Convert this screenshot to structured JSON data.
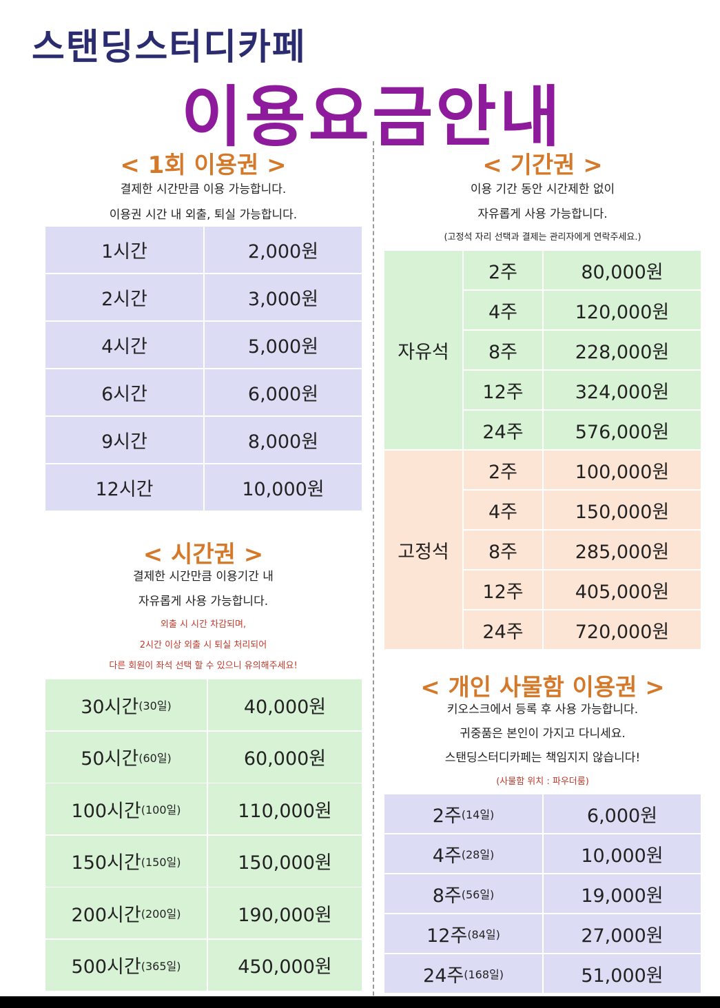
{
  "header": {
    "subtitle": "스탠딩스터디카페",
    "title": "이용요금안내"
  },
  "single": {
    "heading": "< 1회 이용권 >",
    "notes": [
      "결제한 시간만큼 이용 가능합니다.",
      "이용권 시간 내 외출, 퇴실 가능합니다."
    ],
    "rows": [
      [
        "1시간",
        "2,000원"
      ],
      [
        "2시간",
        "3,000원"
      ],
      [
        "4시간",
        "5,000원"
      ],
      [
        "6시간",
        "6,000원"
      ],
      [
        "9시간",
        "8,000원"
      ],
      [
        "12시간",
        "10,000원"
      ]
    ]
  },
  "time": {
    "heading": "< 시간권 >",
    "notes": [
      "결제한 시간만큼 이용기간 내",
      "자유롭게 사용 가능합니다."
    ],
    "warnings": [
      "외출 시 시간 차감되며,",
      "2시간 이상 외출 시 퇴실 처리되어",
      "다른 회원이 좌석 선택 할 수 있으니 유의해주세요!"
    ],
    "rows": [
      [
        "30시간",
        "(30일)",
        "40,000원"
      ],
      [
        "50시간",
        "(60일)",
        "60,000원"
      ],
      [
        "100시간",
        "(100일)",
        "110,000원"
      ],
      [
        "150시간",
        "(150일)",
        "150,000원"
      ],
      [
        "200시간",
        "(200일)",
        "190,000원"
      ],
      [
        "500시간",
        "(365일)",
        "450,000원"
      ]
    ]
  },
  "period": {
    "heading": "< 기간권 >",
    "notes": [
      "이용 기간 동안 시간제한 없이",
      "자유롭게 사용 가능합니다."
    ],
    "small_note": "(고정석 자리 선택과 결제는 관리자에게 연락주세요.)",
    "groups": [
      {
        "name": "자유석",
        "rows": [
          [
            "2주",
            "80,000원"
          ],
          [
            "4주",
            "120,000원"
          ],
          [
            "8주",
            "228,000원"
          ],
          [
            "12주",
            "324,000원"
          ],
          [
            "24주",
            "576,000원"
          ]
        ]
      },
      {
        "name": "고정석",
        "rows": [
          [
            "2주",
            "100,000원"
          ],
          [
            "4주",
            "150,000원"
          ],
          [
            "8주",
            "285,000원"
          ],
          [
            "12주",
            "405,000원"
          ],
          [
            "24주",
            "720,000원"
          ]
        ]
      }
    ]
  },
  "locker": {
    "heading": "< 개인 사물함 이용권 >",
    "notes": [
      "키오스크에서 등록 후 사용 가능합니다.",
      "귀중품은 본인이 가지고 다니세요.",
      "스탠딩스터디카페는 책임지지 않습니다!"
    ],
    "warning": "(사물함 위치 : 파우더룸)",
    "rows": [
      [
        "2주",
        "(14일)",
        "6,000원"
      ],
      [
        "4주",
        "(28일)",
        "10,000원"
      ],
      [
        "8주",
        "(56일)",
        "19,000원"
      ],
      [
        "12주",
        "(84일)",
        "27,000원"
      ],
      [
        "24주",
        "(168일)",
        "51,000원"
      ]
    ]
  }
}
